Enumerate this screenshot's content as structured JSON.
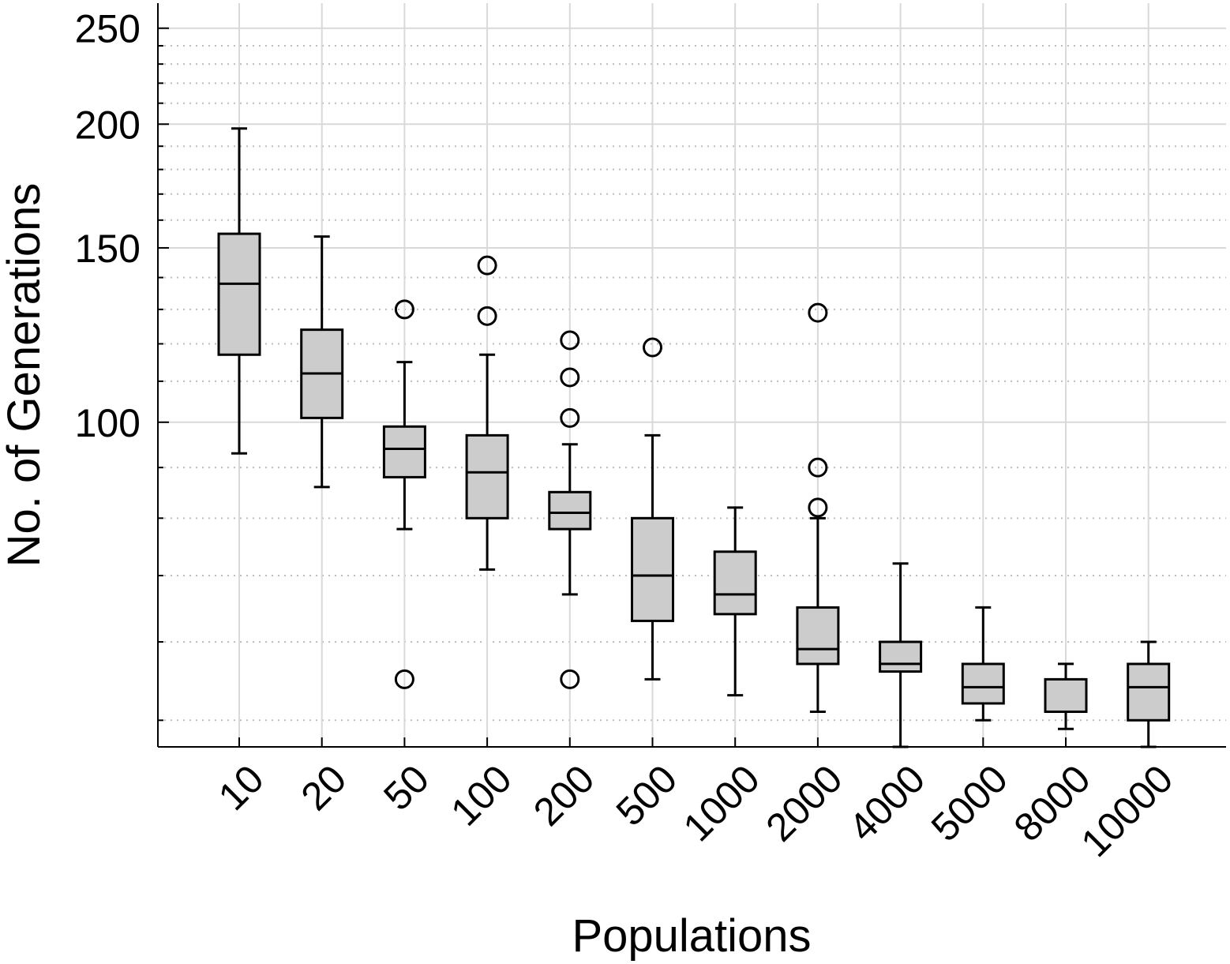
{
  "chart_data": {
    "type": "box",
    "xlabel": "Populations",
    "ylabel": "No. of Generations",
    "y_scale": "log",
    "ylim": [
      47,
      265
    ],
    "y_major_ticks": [
      100,
      150,
      200,
      250
    ],
    "y_major_tick_labels": [
      "100",
      "150",
      "200",
      "250"
    ],
    "y_minor_gridlines": [
      50,
      60,
      70,
      80,
      90,
      110,
      120,
      130,
      140,
      160,
      170,
      180,
      190,
      210,
      220,
      230,
      240
    ],
    "grid": true,
    "box_fill": "#cccccc",
    "categories": [
      "10",
      "20",
      "50",
      "100",
      "200",
      "500",
      "1000",
      "2000",
      "4000",
      "5000",
      "8000",
      "10000"
    ],
    "boxes": [
      {
        "category": "10",
        "whisker_low": 93,
        "q1": 117,
        "median": 138,
        "q3": 155,
        "whisker_high": 198,
        "outliers": []
      },
      {
        "category": "20",
        "whisker_low": 86,
        "q1": 101,
        "median": 112,
        "q3": 124,
        "whisker_high": 154,
        "outliers": []
      },
      {
        "category": "50",
        "whisker_low": 78,
        "q1": 88,
        "median": 94,
        "q3": 99,
        "whisker_high": 115,
        "outliers": [
          55,
          130
        ]
      },
      {
        "category": "100",
        "whisker_low": 71,
        "q1": 80,
        "median": 89,
        "q3": 97,
        "whisker_high": 117,
        "outliers": [
          128,
          144
        ]
      },
      {
        "category": "200",
        "whisker_low": 67,
        "q1": 78,
        "median": 81,
        "q3": 85,
        "whisker_high": 95,
        "outliers": [
          55,
          101,
          111,
          121
        ]
      },
      {
        "category": "500",
        "whisker_low": 55,
        "q1": 63,
        "median": 70,
        "q3": 80,
        "whisker_high": 97,
        "outliers": [
          119
        ]
      },
      {
        "category": "1000",
        "whisker_low": 53,
        "q1": 64,
        "median": 67,
        "q3": 74,
        "whisker_high": 82,
        "outliers": []
      },
      {
        "category": "2000",
        "whisker_low": 51,
        "q1": 57,
        "median": 59,
        "q3": 65,
        "whisker_high": 80,
        "outliers": [
          82,
          90,
          129
        ]
      },
      {
        "category": "4000",
        "whisker_low": 47,
        "q1": 56,
        "median": 57,
        "q3": 60,
        "whisker_high": 72,
        "outliers": []
      },
      {
        "category": "5000",
        "whisker_low": 50,
        "q1": 52,
        "median": 54,
        "q3": 57,
        "whisker_high": 65,
        "outliers": []
      },
      {
        "category": "8000",
        "whisker_low": 49,
        "q1": 51,
        "median": 51,
        "q3": 55,
        "whisker_high": 57,
        "outliers": []
      },
      {
        "category": "10000",
        "whisker_low": 47,
        "q1": 50,
        "median": 54,
        "q3": 57,
        "whisker_high": 60,
        "outliers": []
      }
    ]
  }
}
